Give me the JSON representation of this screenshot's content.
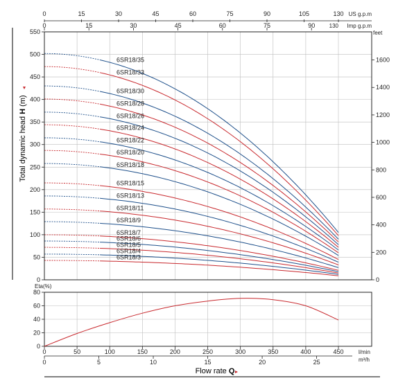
{
  "chart_data": [
    {
      "type": "line",
      "title": "",
      "ylabel": "Total dynamic head",
      "ylabel_symbol": "H",
      "ylabel_unit": "(m)",
      "right_axis_label": "feet",
      "right_axis_ticks": [
        "0",
        "200",
        "400",
        "600",
        "800",
        "1000",
        "1200",
        "1400",
        "1600"
      ],
      "top_axis_us": {
        "label": "US g.p.m",
        "ticks": [
          "0",
          "15",
          "30",
          "45",
          "60",
          "75",
          "90",
          "105",
          "130"
        ]
      },
      "top_axis_imp": {
        "label": "Imp g.p.m",
        "ticks": [
          "0",
          "15",
          "30",
          "45",
          "60",
          "75",
          "90"
        ],
        "end_tick": "130"
      },
      "xlim": [
        0,
        450
      ],
      "ylim": [
        0,
        550
      ],
      "y_ticks": [
        "0",
        "50",
        "100",
        "150",
        "200",
        "250",
        "300",
        "350",
        "400",
        "450",
        "500",
        "550"
      ],
      "grid": true,
      "series": [
        {
          "name": "6SR18/35",
          "shutoff": 502,
          "end": 105,
          "color": "#1d4f8a"
        },
        {
          "name": "6SR18/33",
          "shutoff": 473,
          "end": 98,
          "color": "#c8282d"
        },
        {
          "name": "6SR18/30",
          "shutoff": 430,
          "end": 90,
          "color": "#1d4f8a"
        },
        {
          "name": "6SR18/28",
          "shutoff": 401,
          "end": 84,
          "color": "#c8282d"
        },
        {
          "name": "6SR18/26",
          "shutoff": 372,
          "end": 78,
          "color": "#1d4f8a"
        },
        {
          "name": "6SR18/24",
          "shutoff": 344,
          "end": 72,
          "color": "#c8282d"
        },
        {
          "name": "6SR18/22",
          "shutoff": 315,
          "end": 66,
          "color": "#1d4f8a"
        },
        {
          "name": "6SR18/20",
          "shutoff": 287,
          "end": 60,
          "color": "#c8282d"
        },
        {
          "name": "6SR18/18",
          "shutoff": 258,
          "end": 54,
          "color": "#1d4f8a"
        },
        {
          "name": "6SR18/15",
          "shutoff": 215,
          "end": 45,
          "color": "#c8282d"
        },
        {
          "name": "6SR18/13",
          "shutoff": 186,
          "end": 39,
          "color": "#1d4f8a"
        },
        {
          "name": "6SR18/11",
          "shutoff": 157,
          "end": 33,
          "color": "#c8282d"
        },
        {
          "name": "6SR18/9",
          "shutoff": 129,
          "end": 27,
          "color": "#1d4f8a"
        },
        {
          "name": "6SR18/7",
          "shutoff": 100,
          "end": 21,
          "color": "#c8282d"
        },
        {
          "name": "6SR18/6",
          "shutoff": 86,
          "end": 18,
          "color": "#1d4f8a"
        },
        {
          "name": "6SR18/5",
          "shutoff": 72,
          "end": 15,
          "color": "#c8282d"
        },
        {
          "name": "6SR18/4",
          "shutoff": 57,
          "end": 12,
          "color": "#1d4f8a"
        },
        {
          "name": "6SR18/3",
          "shutoff": 43,
          "end": 9,
          "color": "#c8282d"
        }
      ]
    },
    {
      "type": "line",
      "ylabel": "Eta(%)",
      "xlabel": "Flow rate",
      "xlabel_symbol": "Q",
      "x_unit_lmin": "l/min",
      "x_unit_m3h": "m³/h",
      "x_ticks_lmin": [
        "0",
        "50",
        "100",
        "150",
        "200",
        "250",
        "300",
        "350",
        "400",
        "450"
      ],
      "x_ticks_m3h": [
        "0",
        "5",
        "10",
        "15",
        "20",
        "25"
      ],
      "xlim": [
        0,
        450
      ],
      "ylim": [
        0,
        80
      ],
      "y_ticks": [
        "0",
        "20",
        "40",
        "60",
        "80"
      ],
      "grid": true,
      "series": [
        {
          "color": "#c8282d",
          "x": [
            0,
            50,
            100,
            150,
            200,
            250,
            300,
            350,
            400,
            450
          ],
          "y": [
            0,
            19,
            35,
            49,
            60,
            67,
            71,
            69,
            60,
            39
          ]
        }
      ]
    }
  ]
}
